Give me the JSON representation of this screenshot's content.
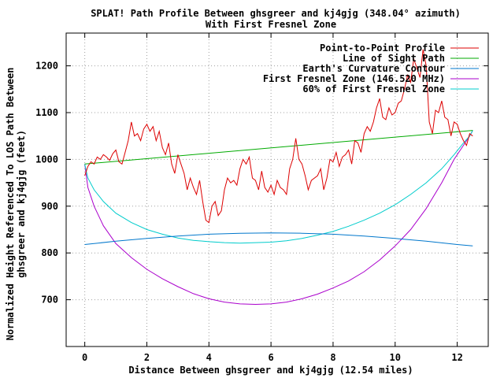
{
  "chart_data": {
    "type": "line",
    "title": "SPLAT! Path Profile Between ghsgreer and kj4gjg (348.04° azimuth)",
    "subtitle": "With First Fresnel Zone",
    "xlabel": "Distance Between ghsgreer and kj4gjg (12.54 miles)",
    "ylabel_line1": "Normalized Height Referenced To LOS Path Between",
    "ylabel_line2": "ghsgreer and kj4gjg (feet)",
    "xlim": [
      -0.6,
      13.0
    ],
    "ylim": [
      600,
      1270
    ],
    "xticks": [
      "0",
      "2",
      "4",
      "6",
      "8",
      "10",
      "12"
    ],
    "yticks": [
      "700",
      "800",
      "900",
      "1000",
      "1100",
      "1200"
    ],
    "grid": true,
    "legend_position": "top-right",
    "series": [
      {
        "name": "Point-to-Point Profile",
        "color": "#dd0000",
        "x": [
          0.0,
          0.1,
          0.2,
          0.3,
          0.4,
          0.5,
          0.6,
          0.7,
          0.8,
          0.9,
          1.0,
          1.1,
          1.2,
          1.3,
          1.4,
          1.5,
          1.6,
          1.7,
          1.8,
          1.9,
          2.0,
          2.1,
          2.2,
          2.3,
          2.4,
          2.5,
          2.6,
          2.7,
          2.8,
          2.9,
          3.0,
          3.1,
          3.2,
          3.3,
          3.4,
          3.5,
          3.6,
          3.7,
          3.8,
          3.9,
          4.0,
          4.1,
          4.2,
          4.3,
          4.4,
          4.5,
          4.6,
          4.7,
          4.8,
          4.9,
          5.0,
          5.1,
          5.2,
          5.3,
          5.4,
          5.5,
          5.6,
          5.7,
          5.8,
          5.9,
          6.0,
          6.1,
          6.2,
          6.3,
          6.4,
          6.5,
          6.6,
          6.7,
          6.8,
          6.9,
          7.0,
          7.1,
          7.2,
          7.3,
          7.4,
          7.5,
          7.6,
          7.7,
          7.8,
          7.9,
          8.0,
          8.1,
          8.2,
          8.3,
          8.4,
          8.5,
          8.6,
          8.7,
          8.8,
          8.9,
          9.0,
          9.1,
          9.2,
          9.3,
          9.4,
          9.5,
          9.6,
          9.7,
          9.8,
          9.9,
          10.0,
          10.1,
          10.2,
          10.3,
          10.4,
          10.5,
          10.6,
          10.7,
          10.8,
          10.9,
          11.0,
          11.1,
          11.2,
          11.3,
          11.4,
          11.5,
          11.6,
          11.7,
          11.8,
          11.9,
          12.0,
          12.1,
          12.2,
          12.3,
          12.4,
          12.5
        ],
        "values": [
          965,
          985,
          995,
          990,
          1005,
          1000,
          1010,
          1005,
          998,
          1012,
          1020,
          995,
          990,
          1015,
          1040,
          1080,
          1050,
          1055,
          1040,
          1065,
          1075,
          1060,
          1070,
          1040,
          1060,
          1025,
          1010,
          1035,
          990,
          970,
          1010,
          990,
          970,
          935,
          960,
          940,
          925,
          955,
          910,
          870,
          865,
          900,
          910,
          880,
          890,
          935,
          960,
          950,
          955,
          945,
          980,
          1000,
          990,
          1005,
          960,
          955,
          935,
          975,
          940,
          930,
          945,
          925,
          955,
          940,
          935,
          925,
          980,
          1000,
          1045,
          1000,
          990,
          965,
          935,
          955,
          960,
          965,
          980,
          935,
          960,
          1000,
          995,
          1015,
          985,
          1005,
          1010,
          1020,
          990,
          1040,
          1035,
          1015,
          1055,
          1070,
          1060,
          1080,
          1110,
          1130,
          1090,
          1085,
          1110,
          1095,
          1100,
          1120,
          1125,
          1150,
          1180,
          1165,
          1215,
          1195,
          1175,
          1235,
          1200,
          1080,
          1055,
          1105,
          1100,
          1125,
          1090,
          1085,
          1050,
          1080,
          1075,
          1055,
          1040,
          1030,
          1055,
          1050
        ],
        "label_y": 61
      },
      {
        "name": "Line of Sight Path",
        "color": "#00aa00",
        "x": [
          0.0,
          12.5
        ],
        "values": [
          990,
          1062
        ],
        "label_y": 74
      },
      {
        "name": "Earth's Curvature Contour",
        "color": "#0077cc",
        "x": [
          0.0,
          1.0,
          2.0,
          3.0,
          4.0,
          5.0,
          6.0,
          7.0,
          8.0,
          9.0,
          10.0,
          11.0,
          12.0,
          12.5
        ],
        "values": [
          818,
          825,
          831,
          836,
          840,
          842,
          843,
          842,
          840,
          836,
          831,
          825,
          818,
          815
        ],
        "label_y": 87
      },
      {
        "name": "First Fresnel Zone (146.520 MHz)",
        "color": "#aa00cc",
        "x": [
          0.0,
          0.1,
          0.3,
          0.6,
          1.0,
          1.5,
          2.0,
          2.5,
          3.0,
          3.5,
          4.0,
          4.5,
          5.0,
          5.5,
          6.0,
          6.5,
          7.0,
          7.5,
          8.0,
          8.5,
          9.0,
          9.5,
          10.0,
          10.5,
          11.0,
          11.5,
          11.9,
          12.2,
          12.4,
          12.5
        ],
        "values": [
          990,
          940,
          900,
          858,
          820,
          790,
          765,
          745,
          728,
          713,
          702,
          695,
          691,
          690,
          691,
          695,
          702,
          712,
          725,
          740,
          760,
          785,
          815,
          850,
          895,
          950,
          1000,
          1030,
          1050,
          1062
        ],
        "label_y": 100
      },
      {
        "name": "60% of First Fresnel Zone",
        "color": "#00cccc",
        "x": [
          0.0,
          0.1,
          0.3,
          0.6,
          1.0,
          1.5,
          2.0,
          2.5,
          3.0,
          3.5,
          4.0,
          4.5,
          5.0,
          5.5,
          6.0,
          6.5,
          7.0,
          7.5,
          8.0,
          8.5,
          9.0,
          9.5,
          10.0,
          10.5,
          11.0,
          11.5,
          11.9,
          12.2,
          12.4,
          12.5
        ],
        "values": [
          990,
          960,
          935,
          910,
          885,
          865,
          850,
          840,
          832,
          827,
          824,
          822,
          821,
          822,
          823,
          826,
          831,
          838,
          846,
          857,
          870,
          885,
          903,
          925,
          950,
          980,
          1010,
          1035,
          1050,
          1062
        ],
        "label_y": 113
      }
    ]
  }
}
